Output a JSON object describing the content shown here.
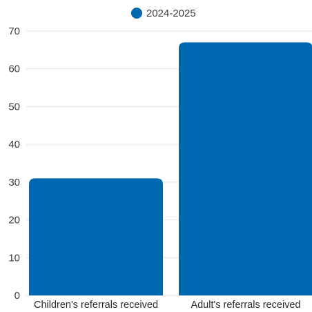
{
  "chart_data": {
    "type": "bar",
    "categories": [
      "Children's referrals received",
      "Adult's referrals received"
    ],
    "series": [
      {
        "name": "2024-2025",
        "values": [
          31,
          67
        ]
      }
    ],
    "title": "",
    "xlabel": "",
    "ylabel": "",
    "ylim": [
      0,
      70
    ],
    "yticks": [
      0,
      10,
      20,
      30,
      40,
      50,
      60,
      70
    ],
    "grid": true,
    "legend_position": "top-center",
    "colors": {
      "bar": "#0067b1"
    }
  }
}
